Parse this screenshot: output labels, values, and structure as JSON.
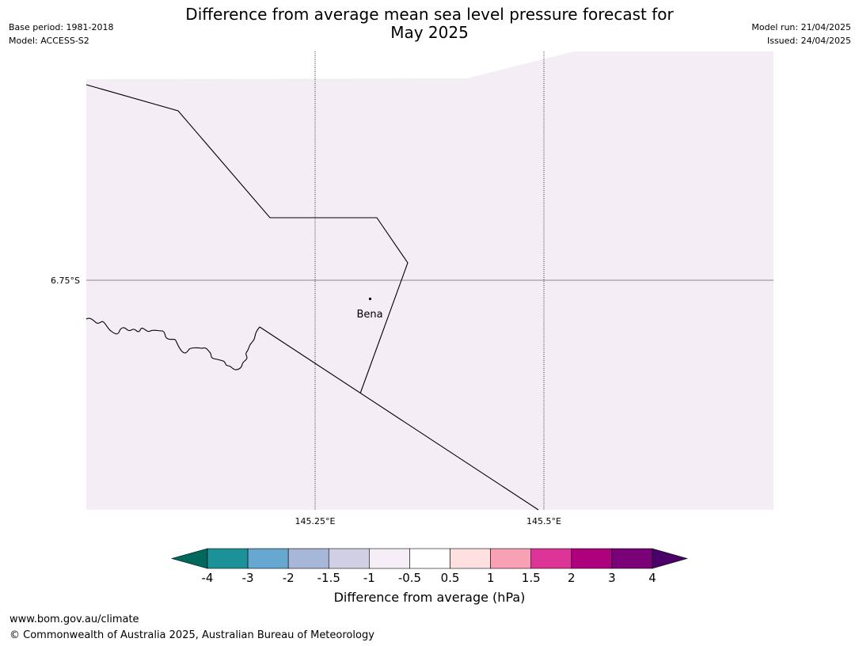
{
  "header": {
    "title_line1": "Difference from average mean sea level pressure forecast for",
    "title_line2": "May 2025",
    "base_period": "Base period: 1981-2018",
    "model": "Model: ACCESS-S2",
    "model_run": "Model run: 21/04/2025",
    "issued": "Issued: 24/04/2025"
  },
  "map": {
    "fill_color": "#f4edf6",
    "gridlines": {
      "longitudes": [
        {
          "value": 145.25,
          "label": "145.25°E"
        },
        {
          "value": 145.5,
          "label": "145.5°E"
        }
      ],
      "latitudes": [
        {
          "value": -6.75,
          "label": "6.75°S"
        }
      ]
    },
    "places": [
      {
        "name": "Bena"
      }
    ]
  },
  "colorbar": {
    "title": "Difference from average (hPa)",
    "tick_labels": [
      "-4",
      "-3",
      "-2",
      "-1.5",
      "-1",
      "-0.5",
      "0.5",
      "1",
      "1.5",
      "2",
      "3",
      "4"
    ],
    "under_color": "#00695c",
    "over_color": "#4a0068",
    "colors": [
      "#1a9298",
      "#66a8d0",
      "#a6b7da",
      "#d0cfe4",
      "#f5eef7",
      "#ffffff",
      "#fde0df",
      "#f8a1b5",
      "#dd3497",
      "#ae017e",
      "#7a0177"
    ]
  },
  "footer": {
    "url": "www.bom.gov.au/climate",
    "copyright": "© Commonwealth of Australia 2025, Australian Bureau of Meteorology"
  }
}
